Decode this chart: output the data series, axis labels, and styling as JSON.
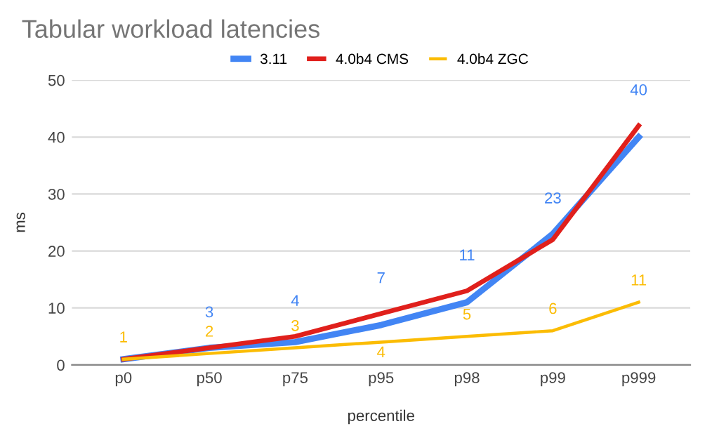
{
  "chart_data": {
    "type": "line",
    "title": "Tabular workload latencies",
    "xlabel": "percentile",
    "ylabel": "ms",
    "categories": [
      "p0",
      "p50",
      "p75",
      "p95",
      "p98",
      "p99",
      "p999"
    ],
    "series": [
      {
        "name": "3.11",
        "color": "#4285f4",
        "values": [
          1,
          3,
          4,
          7,
          11,
          23,
          40
        ],
        "value_labels": [
          null,
          "3",
          "4",
          "7",
          "11",
          "23",
          "40"
        ]
      },
      {
        "name": "4.0b4 CMS",
        "color": "#e0201c",
        "values": [
          1,
          3,
          5,
          9,
          13,
          22,
          42
        ]
      },
      {
        "name": "4.0b4 ZGC",
        "color": "#fbbc04",
        "values": [
          1,
          2,
          3,
          4,
          5,
          6,
          11
        ],
        "value_labels": [
          "1",
          "2",
          "3",
          "4",
          "5",
          "6",
          "11"
        ]
      }
    ],
    "ylim": [
      0,
      50
    ],
    "yticks": [
      0,
      10,
      20,
      30,
      40,
      50
    ],
    "grid": "y",
    "legend": "top",
    "marker": "none",
    "line_style": "solid"
  }
}
